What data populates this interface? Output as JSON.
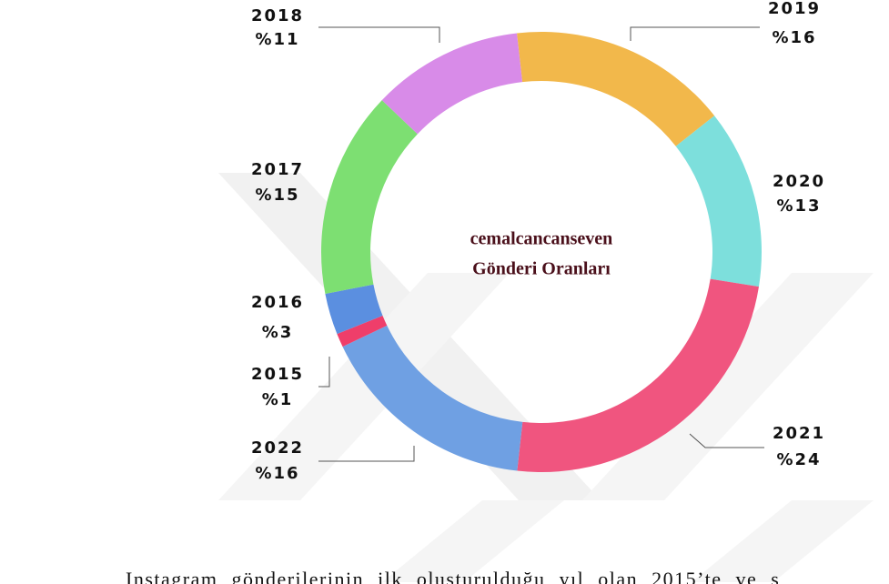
{
  "chart_data": {
    "type": "pie",
    "title": [
      "cemalcancanseven",
      "Gönderi Oranları"
    ],
    "categories": [
      "2019",
      "2020",
      "2021",
      "2022",
      "2015",
      "2016",
      "2017",
      "2018"
    ],
    "values": [
      16,
      13,
      24,
      16,
      1,
      3,
      15,
      11
    ],
    "value_labels": [
      "%16",
      "%13",
      "%24",
      "%16",
      "%1",
      "%3",
      "%15",
      "%11"
    ],
    "colors": [
      "#f2b84b",
      "#7ddfdc",
      "#f0557f",
      "#6fa0e3",
      "#ef3e6a",
      "#5b8fe0",
      "#7ddf72",
      "#d88be8"
    ]
  },
  "body_text": "Instagram gönderilerinin ilk oluşturulduğu yıl olan 2015’te ve s"
}
